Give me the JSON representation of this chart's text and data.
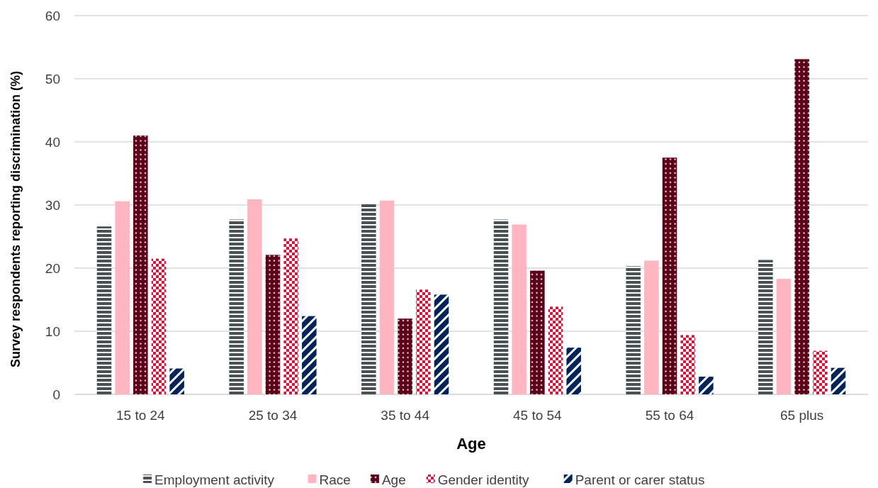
{
  "chart_data": {
    "type": "bar",
    "xlabel": "Age",
    "ylabel": "Survey respondents reporting discrimination (%)",
    "categories": [
      "15 to 24",
      "25 to 34",
      "35 to 44",
      "45 to 54",
      "55 to 64",
      "65 plus"
    ],
    "series": [
      {
        "name": "Employment activity",
        "color": "#4a5255",
        "values": [
          26.6,
          27.7,
          30.2,
          27.7,
          20.3,
          21.3
        ]
      },
      {
        "name": "Race",
        "color": "#ffb6c1",
        "values": [
          30.6,
          30.9,
          30.7,
          26.9,
          21.2,
          18.3
        ]
      },
      {
        "name": "Age",
        "color": "#5c0018",
        "values": [
          41.0,
          22.1,
          12.0,
          19.6,
          37.5,
          53.1
        ]
      },
      {
        "name": "Gender identity",
        "color": "#d6153b",
        "values": [
          21.5,
          24.7,
          16.6,
          13.9,
          9.4,
          6.9
        ]
      },
      {
        "name": "Parent or carer status",
        "color": "#00245a",
        "values": [
          4.1,
          12.4,
          15.8,
          7.4,
          2.8,
          4.2
        ]
      }
    ],
    "ylim": [
      0,
      60
    ],
    "yticks": [
      0,
      10,
      20,
      30,
      40,
      50,
      60
    ],
    "grid": "y",
    "legend": "bottom"
  }
}
